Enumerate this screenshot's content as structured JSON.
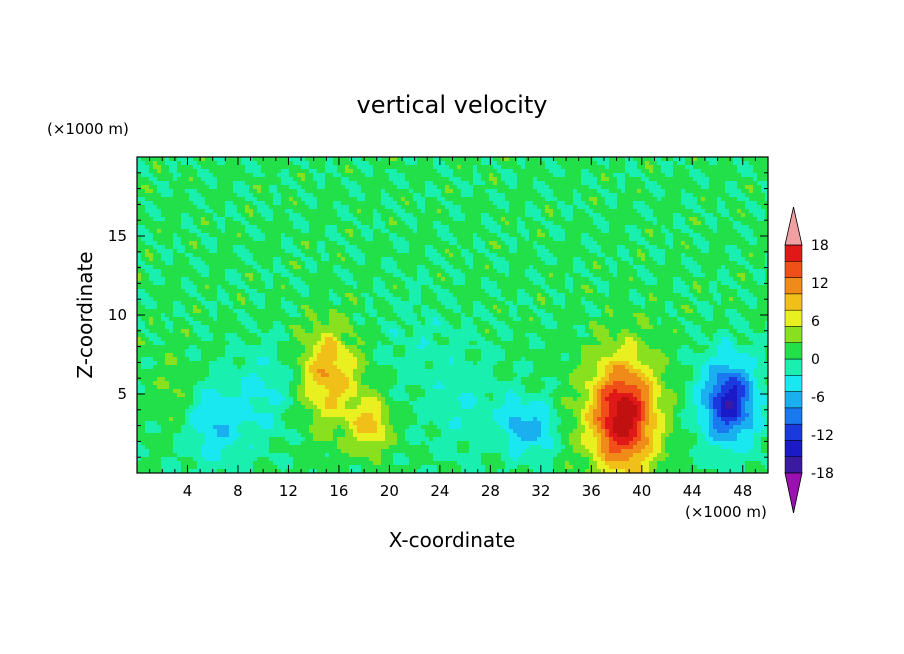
{
  "chart_data": {
    "type": "heatmap",
    "title": "vertical velocity",
    "xlabel": "X-coordinate",
    "ylabel": "Z-coordinate",
    "x_unit": "(×1000 m)",
    "y_unit": "(×1000 m)",
    "xlim": [
      0,
      50
    ],
    "ylim": [
      0,
      20
    ],
    "x_ticks": [
      4,
      8,
      12,
      16,
      20,
      24,
      28,
      32,
      36,
      40,
      44,
      48
    ],
    "y_ticks": [
      5,
      10,
      15
    ],
    "colorbar": {
      "tick_values": [
        18,
        12,
        6,
        0,
        -6,
        -12,
        -18
      ],
      "tick_labels": [
        "18",
        "12",
        "6",
        "0",
        "-6",
        "-12",
        "-18"
      ],
      "levels": [
        -21,
        -18,
        -15,
        -12,
        -9,
        -6,
        -3,
        0,
        3,
        6,
        9,
        12,
        15,
        18,
        21
      ],
      "colors": [
        "#7a1aa8",
        "#3a1aa0",
        "#1a1ac8",
        "#1a3ae0",
        "#1a78f0",
        "#1ab0f0",
        "#19e8f0",
        "#19f0b0",
        "#22e04a",
        "#88e01e",
        "#e8f020",
        "#f0c018",
        "#f08a18",
        "#f05018",
        "#e01818",
        "#c01010"
      ],
      "extend_low_color": "#9a10b0",
      "extend_high_color": "#f0a0a0"
    },
    "features": [
      {
        "x": 15.0,
        "z": 6.5,
        "value": 8,
        "rx": 2.0,
        "rz": 2.8
      },
      {
        "x": 18.5,
        "z": 3.0,
        "value": 9,
        "rx": 1.5,
        "rz": 1.6
      },
      {
        "x": 16.0,
        "z": 5.5,
        "value": 4,
        "rx": 3.0,
        "rz": 3.5
      },
      {
        "x": 38.5,
        "z": 3.5,
        "value": 17,
        "rx": 2.4,
        "rz": 3.2
      },
      {
        "x": 38.5,
        "z": 4.0,
        "value": 6,
        "rx": 3.5,
        "rz": 4.5
      },
      {
        "x": 47.0,
        "z": 4.5,
        "value": -13,
        "rx": 1.8,
        "rz": 2.2
      },
      {
        "x": 46.5,
        "z": 4.5,
        "value": -5,
        "rx": 3.0,
        "rz": 3.5
      },
      {
        "x": 6.0,
        "z": 3.0,
        "value": -6,
        "rx": 2.5,
        "rz": 2.5
      },
      {
        "x": 10.0,
        "z": 5.0,
        "value": -4,
        "rx": 2.5,
        "rz": 3.0
      },
      {
        "x": 30.0,
        "z": 3.0,
        "value": -7,
        "rx": 1.2,
        "rz": 1.8
      },
      {
        "x": 32.0,
        "z": 2.8,
        "value": -7,
        "rx": 1.2,
        "rz": 1.8
      },
      {
        "x": 26.0,
        "z": 4.0,
        "value": -3,
        "rx": 3.0,
        "rz": 3.0
      },
      {
        "x": 3.0,
        "z": 5.0,
        "value": 3,
        "rx": 1.5,
        "rz": 2.5
      },
      {
        "x": 22.0,
        "z": 8.0,
        "value": -2,
        "rx": 4.0,
        "rz": 3.0
      }
    ]
  }
}
